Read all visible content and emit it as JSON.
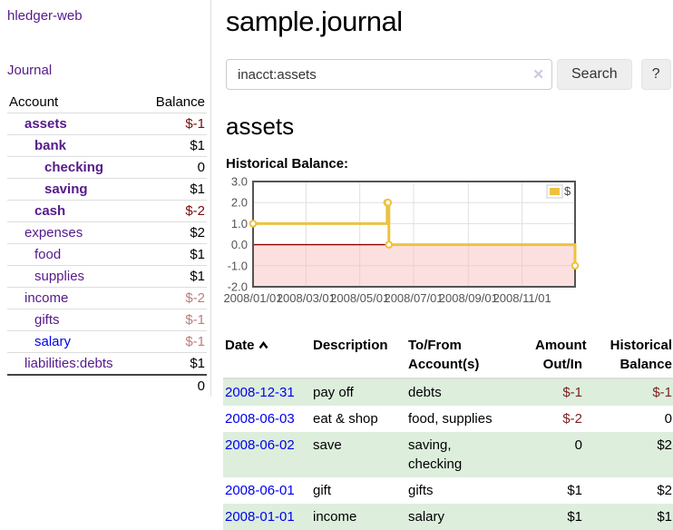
{
  "app": {
    "brand": "hledger-web"
  },
  "sidebar": {
    "journal_link": "Journal",
    "header": {
      "account": "Account",
      "balance": "Balance"
    },
    "accounts": [
      {
        "name": "assets",
        "indent": 1,
        "balance": "$-1",
        "bold": true,
        "neg": "strong"
      },
      {
        "name": "bank",
        "indent": 2,
        "balance": "$1",
        "bold": true,
        "neg": "none"
      },
      {
        "name": "checking",
        "indent": 3,
        "balance": "0",
        "bold": true,
        "neg": "none"
      },
      {
        "name": "saving",
        "indent": 3,
        "balance": "$1",
        "bold": true,
        "neg": "none"
      },
      {
        "name": "cash",
        "indent": 2,
        "balance": "$-2",
        "bold": true,
        "neg": "strong"
      },
      {
        "name": "expenses",
        "indent": 1,
        "balance": "$2",
        "bold": false,
        "neg": "none"
      },
      {
        "name": "food",
        "indent": 2,
        "balance": "$1",
        "bold": false,
        "neg": "none"
      },
      {
        "name": "supplies",
        "indent": 2,
        "balance": "$1",
        "bold": false,
        "neg": "none"
      },
      {
        "name": "income",
        "indent": 1,
        "balance": "$-2",
        "bold": false,
        "neg": "soft"
      },
      {
        "name": "gifts",
        "indent": 2,
        "balance": "$-1",
        "bold": false,
        "neg": "soft"
      },
      {
        "name": "salary",
        "indent": 2,
        "balance": "$-1",
        "bold": false,
        "neg": "soft",
        "link_color": "blue"
      },
      {
        "name": "liabilities:debts",
        "indent": 1,
        "balance": "$1",
        "bold": false,
        "neg": "none"
      }
    ],
    "total": "0"
  },
  "header": {
    "title": "sample.journal"
  },
  "search": {
    "value": "inacct:assets",
    "clear_icon": "✕",
    "button_label": "Search",
    "help_label": "?"
  },
  "account_page": {
    "heading": "assets",
    "chart_title": "Historical Balance:"
  },
  "chart_data": {
    "type": "line",
    "step": true,
    "title": "Historical Balance",
    "xlabel": "",
    "ylabel": "",
    "xlim": [
      "2008-01-01",
      "2008-12-31"
    ],
    "ylim": [
      -2,
      3
    ],
    "x_ticks": [
      "2008/01/01",
      "2008/03/01",
      "2008/05/01",
      "2008/07/01",
      "2008/09/01",
      "2008/11/01"
    ],
    "y_ticks": [
      "3.0",
      "2.0",
      "1.0",
      "0.0",
      "-1.0",
      "-2.0"
    ],
    "series": [
      {
        "name": "$",
        "color": "#EDC240",
        "points": [
          [
            "2008-01-01",
            1
          ],
          [
            "2008-06-01",
            2
          ],
          [
            "2008-06-02",
            2
          ],
          [
            "2008-06-03",
            0
          ],
          [
            "2008-12-31",
            -1
          ]
        ]
      }
    ],
    "legend": {
      "label": "$",
      "position": "top-right"
    },
    "grid": true,
    "zero_line_color": "#8B0000",
    "negative_region_fill": "#F8BBBB",
    "tick_color": "#545454",
    "border_color": "#545454"
  },
  "register": {
    "columns": {
      "date": "Date",
      "description": "Description",
      "accounts": "To/From\nAccount(s)",
      "amount": "Amount\nOut/In",
      "balance": "Historical\nBalance"
    },
    "sort_icon": "chevron-up",
    "rows": [
      {
        "date": "2008-12-31",
        "description": "pay off",
        "accounts": "debts",
        "amount": "$-1",
        "amount_neg": true,
        "balance": "$-1",
        "balance_neg": true
      },
      {
        "date": "2008-06-03",
        "description": "eat & shop",
        "accounts": "food, supplies",
        "amount": "$-2",
        "amount_neg": true,
        "balance": "0",
        "balance_neg": false
      },
      {
        "date": "2008-06-02",
        "description": "save",
        "accounts": "saving,\nchecking",
        "amount": "0",
        "amount_neg": false,
        "balance": "$2",
        "balance_neg": false
      },
      {
        "date": "2008-06-01",
        "description": "gift",
        "accounts": "gifts",
        "amount": "$1",
        "amount_neg": false,
        "balance": "$2",
        "balance_neg": false
      },
      {
        "date": "2008-01-01",
        "description": "income",
        "accounts": "salary",
        "amount": "$1",
        "amount_neg": false,
        "balance": "$1",
        "balance_neg": false
      }
    ]
  }
}
